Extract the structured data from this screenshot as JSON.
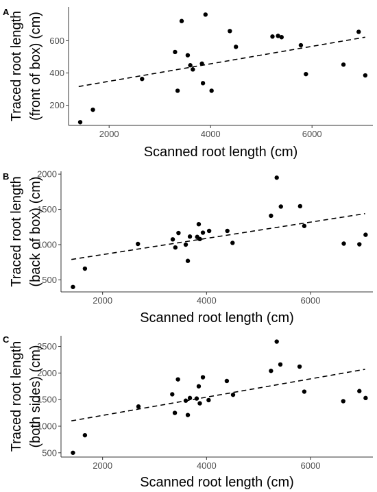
{
  "colors": {
    "point": "#000000",
    "axis": "#333333",
    "text": "#4d4d4d",
    "fit": "#000000"
  },
  "chart_data": [
    {
      "type": "scatter",
      "panel": "A",
      "xlabel": "Scanned root length (cm)",
      "ylabel_lines": [
        "Traced root length",
        "(front of box) (cm)"
      ],
      "xlim": [
        1200,
        7200
      ],
      "ylim": [
        75,
        810
      ],
      "xticks": [
        2000,
        4000,
        6000
      ],
      "yticks": [
        200,
        400,
        600
      ],
      "grid": false,
      "fit_line": [
        [
          1400,
          316
        ],
        [
          7050,
          622
        ]
      ],
      "points": [
        [
          1430,
          95
        ],
        [
          1680,
          172
        ],
        [
          2650,
          363
        ],
        [
          3300,
          530
        ],
        [
          3350,
          290
        ],
        [
          3430,
          722
        ],
        [
          3550,
          510
        ],
        [
          3600,
          448
        ],
        [
          3650,
          422
        ],
        [
          3830,
          458
        ],
        [
          3850,
          337
        ],
        [
          3900,
          762
        ],
        [
          4020,
          290
        ],
        [
          4380,
          660
        ],
        [
          4500,
          562
        ],
        [
          5220,
          626
        ],
        [
          5330,
          630
        ],
        [
          5400,
          622
        ],
        [
          5780,
          572
        ],
        [
          5880,
          393
        ],
        [
          6620,
          452
        ],
        [
          6920,
          655
        ],
        [
          7050,
          385
        ]
      ]
    },
    {
      "type": "scatter",
      "panel": "B",
      "xlabel": "Scanned root length (cm)",
      "ylabel_lines": [
        "Traced root length",
        "(back of box) (cm)"
      ],
      "xlim": [
        1200,
        7200
      ],
      "ylim": [
        330,
        2040
      ],
      "xticks": [
        2000,
        4000,
        6000
      ],
      "yticks": [
        500,
        1000,
        1500,
        2000
      ],
      "grid": false,
      "fit_line": [
        [
          1400,
          790
        ],
        [
          7050,
          1440
        ]
      ],
      "points": [
        [
          1430,
          400
        ],
        [
          1660,
          660
        ],
        [
          2680,
          1010
        ],
        [
          3350,
          1075
        ],
        [
          3400,
          960
        ],
        [
          3460,
          1165
        ],
        [
          3600,
          1000
        ],
        [
          3640,
          770
        ],
        [
          3680,
          1115
        ],
        [
          3820,
          1110
        ],
        [
          3850,
          1290
        ],
        [
          3870,
          1080
        ],
        [
          3930,
          1170
        ],
        [
          4050,
          1195
        ],
        [
          4400,
          1195
        ],
        [
          4500,
          1025
        ],
        [
          5240,
          1410
        ],
        [
          5350,
          1950
        ],
        [
          5430,
          1540
        ],
        [
          5800,
          1545
        ],
        [
          5880,
          1265
        ],
        [
          6640,
          1015
        ],
        [
          6940,
          1005
        ],
        [
          7060,
          1140
        ]
      ]
    },
    {
      "type": "scatter",
      "panel": "C",
      "xlabel": "Scanned root length (cm)",
      "ylabel_lines": [
        "Traced root length",
        "(both sides) (cm)"
      ],
      "xlim": [
        1200,
        7200
      ],
      "ylim": [
        420,
        2700
      ],
      "xticks": [
        2000,
        4000,
        6000
      ],
      "yticks": [
        500,
        1000,
        1500,
        2000,
        2500
      ],
      "grid": false,
      "fit_line": [
        [
          1400,
          1100
        ],
        [
          7050,
          2070
        ]
      ],
      "points": [
        [
          1430,
          500
        ],
        [
          1660,
          830
        ],
        [
          2690,
          1370
        ],
        [
          3340,
          1600
        ],
        [
          3390,
          1250
        ],
        [
          3450,
          1880
        ],
        [
          3600,
          1480
        ],
        [
          3640,
          1210
        ],
        [
          3680,
          1530
        ],
        [
          3810,
          1520
        ],
        [
          3850,
          1750
        ],
        [
          3870,
          1430
        ],
        [
          3930,
          1920
        ],
        [
          4040,
          1490
        ],
        [
          4390,
          1850
        ],
        [
          4510,
          1590
        ],
        [
          5240,
          2040
        ],
        [
          5350,
          2590
        ],
        [
          5420,
          2160
        ],
        [
          5790,
          2120
        ],
        [
          5880,
          1650
        ],
        [
          6630,
          1470
        ],
        [
          6940,
          1660
        ],
        [
          7060,
          1530
        ]
      ]
    }
  ]
}
